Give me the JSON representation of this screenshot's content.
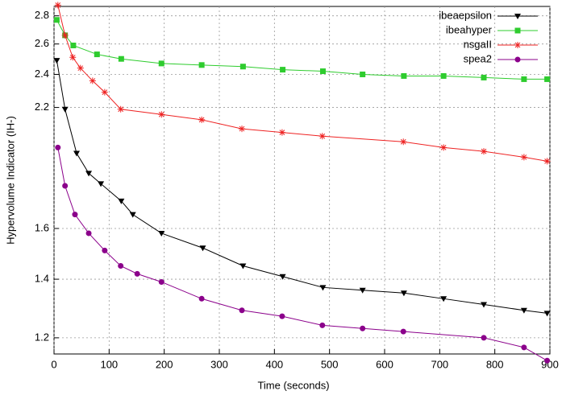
{
  "chart_data": {
    "type": "line",
    "xlabel": "Time (seconds)",
    "ylabel": "Hypervolume Indicator (IH-)",
    "xlim": [
      0,
      900
    ],
    "xticks": [
      0,
      100,
      200,
      300,
      400,
      500,
      600,
      700,
      800,
      900
    ],
    "ylim": [
      1.15,
      2.87
    ],
    "yticks": [
      1.2,
      1.4,
      1.6,
      2.2,
      2.4,
      2.6,
      2.8
    ],
    "log_y": true,
    "grid": true,
    "legend": "top-right",
    "series": [
      {
        "name": "ibeaepsilon",
        "color": "#000000",
        "marker": "triangle-down",
        "x": [
          5,
          20,
          41,
          63,
          85,
          122,
          143,
          195,
          270,
          343,
          415,
          488,
          560,
          635,
          707,
          780,
          853,
          895
        ],
        "values": [
          2.49,
          2.19,
          1.95,
          1.85,
          1.8,
          1.72,
          1.66,
          1.58,
          1.52,
          1.45,
          1.41,
          1.37,
          1.36,
          1.35,
          1.33,
          1.31,
          1.29,
          1.28
        ]
      },
      {
        "name": "ibeahyper",
        "color": "#2ecc2e",
        "marker": "square",
        "x": [
          5,
          20,
          35,
          78,
          122,
          195,
          268,
          343,
          415,
          488,
          560,
          635,
          707,
          780,
          853,
          895
        ],
        "values": [
          2.77,
          2.66,
          2.59,
          2.53,
          2.5,
          2.47,
          2.46,
          2.45,
          2.43,
          2.42,
          2.4,
          2.39,
          2.39,
          2.38,
          2.37,
          2.37
        ]
      },
      {
        "name": "nsgaII",
        "color": "#ee2222",
        "marker": "star",
        "x": [
          7,
          20,
          34,
          48,
          70,
          92,
          121,
          195,
          268,
          341,
          414,
          487,
          634,
          707,
          780,
          853,
          895
        ],
        "values": [
          2.88,
          2.66,
          2.51,
          2.44,
          2.36,
          2.29,
          2.19,
          2.16,
          2.13,
          2.08,
          2.06,
          2.04,
          2.01,
          1.98,
          1.96,
          1.93,
          1.91
        ]
      },
      {
        "name": "spea2",
        "color": "#8b008b",
        "marker": "circle",
        "x": [
          7,
          20,
          38,
          63,
          92,
          121,
          151,
          195,
          268,
          341,
          414,
          487,
          560,
          634,
          780,
          853,
          895
        ],
        "values": [
          1.98,
          1.79,
          1.66,
          1.58,
          1.51,
          1.45,
          1.42,
          1.39,
          1.33,
          1.29,
          1.27,
          1.24,
          1.23,
          1.22,
          1.2,
          1.17,
          1.13
        ]
      }
    ]
  }
}
